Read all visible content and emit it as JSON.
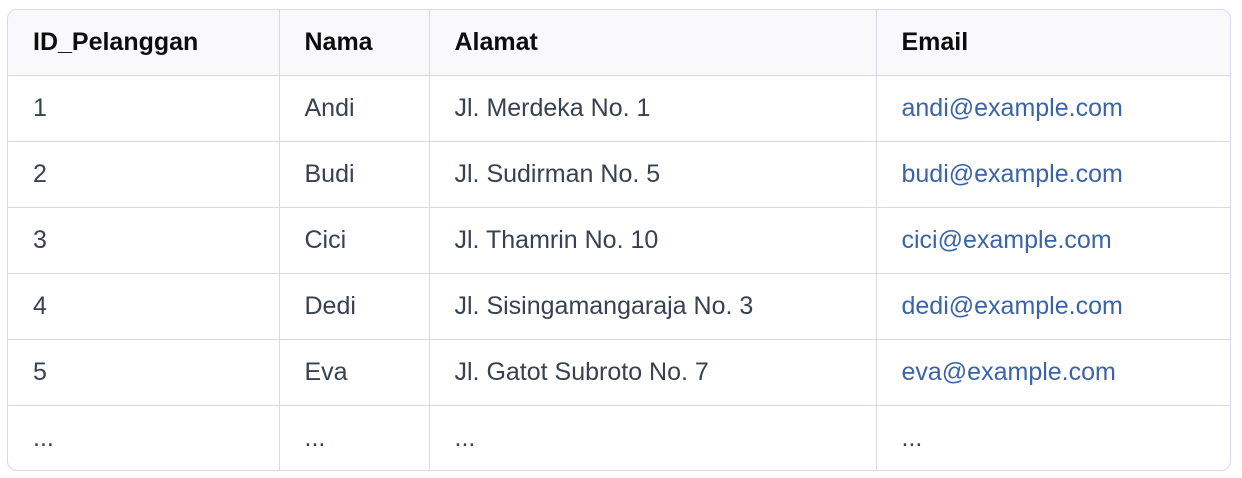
{
  "table": {
    "headers": [
      "ID_Pelanggan",
      "Nama",
      "Alamat",
      "Email"
    ],
    "rows": [
      [
        "1",
        "Andi",
        "Jl. Merdeka No. 1",
        "andi@example.com"
      ],
      [
        "2",
        "Budi",
        "Jl. Sudirman No. 5",
        "budi@example.com"
      ],
      [
        "3",
        "Cici",
        "Jl. Thamrin No. 10",
        "cici@example.com"
      ],
      [
        "4",
        "Dedi",
        "Jl. Sisingamangaraja No. 3",
        "dedi@example.com"
      ],
      [
        "5",
        "Eva",
        "Jl. Gatot Subroto No. 7",
        "eva@example.com"
      ],
      [
        "...",
        "...",
        "...",
        "..."
      ]
    ]
  },
  "colors": {
    "link": "#3b64a8",
    "border": "#d9d9e3",
    "header_bg": "#f9f9fb"
  }
}
